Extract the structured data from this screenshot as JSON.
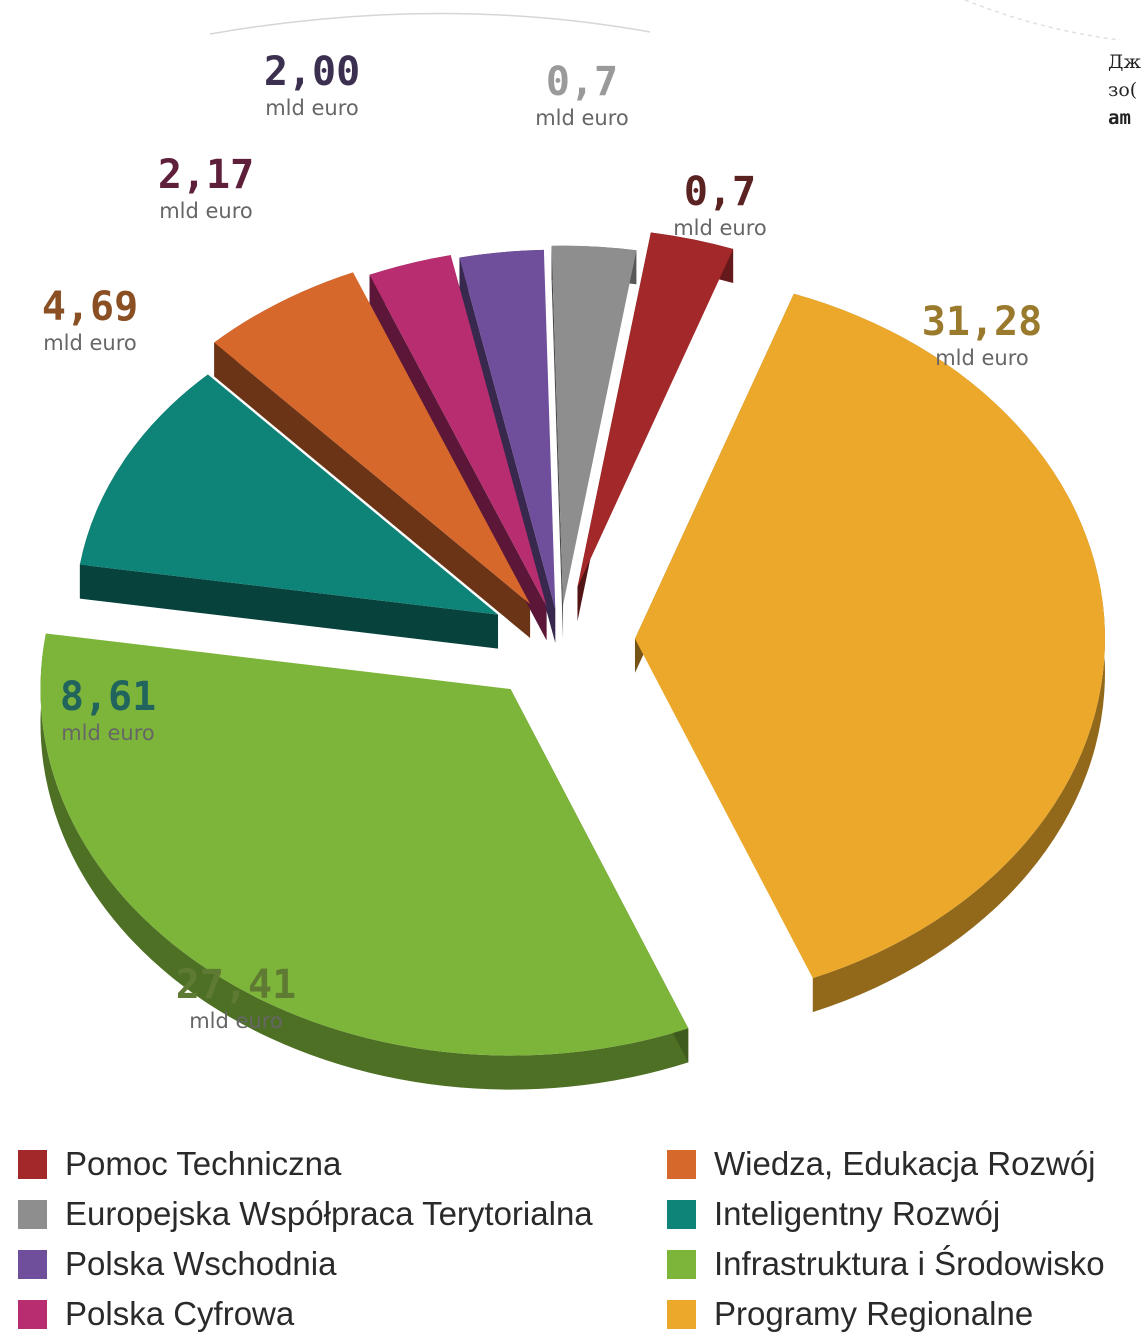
{
  "side_note": {
    "line1": "Дж",
    "line2": "зо(",
    "line3": "am"
  },
  "chart_data": {
    "type": "pie",
    "categories": [
      "Pomoc Techniczna",
      "Europejska Współpraca Terytorialna",
      "Polska Wschodnia",
      "Polska Cyfrowa",
      "Wiedza, Edukacja Rozwój",
      "Inteligentny Rozwój",
      "Infrastruktura i Środowisko",
      "Programy Regionalne"
    ],
    "values": [
      0.7,
      0.7,
      2.0,
      2.17,
      4.69,
      8.61,
      27.41,
      31.28
    ],
    "data_labels": [
      "0,7",
      "0,7",
      "2,00",
      "2,17",
      "4,69",
      "8,61",
      "27,41",
      "31,28"
    ],
    "unit_label": "mld euro",
    "colors": [
      "#a3282a",
      "#8e8e8e",
      "#6f4f9b",
      "#b82d6f",
      "#d7682c",
      "#0e8377",
      "#7db53a",
      "#eca82b"
    ],
    "label_colors": [
      "#5b2222",
      "#9a9a9a",
      "#3c3050",
      "#5e1f3a",
      "#8a4f22",
      "#21645d",
      "#5e7a33",
      "#9a7a2c"
    ]
  },
  "legend": {
    "items": [
      {
        "label": "Pomoc Techniczna",
        "color": "#a3282a"
      },
      {
        "label": "Europejska Współpraca Terytorialna",
        "color": "#8e8e8e"
      },
      {
        "label": "Polska Wschodnia",
        "color": "#6f4f9b"
      },
      {
        "label": "Polska Cyfrowa",
        "color": "#b82d6f"
      },
      {
        "label": "Wiedza, Edukacja Rozwój",
        "color": "#d7682c"
      },
      {
        "label": "Inteligentny Rozwój",
        "color": "#0e8377"
      },
      {
        "label": "Infrastruktura i Środowisko",
        "color": "#7db53a"
      },
      {
        "label": "Programy Regionalne",
        "color": "#eca82b"
      }
    ]
  }
}
